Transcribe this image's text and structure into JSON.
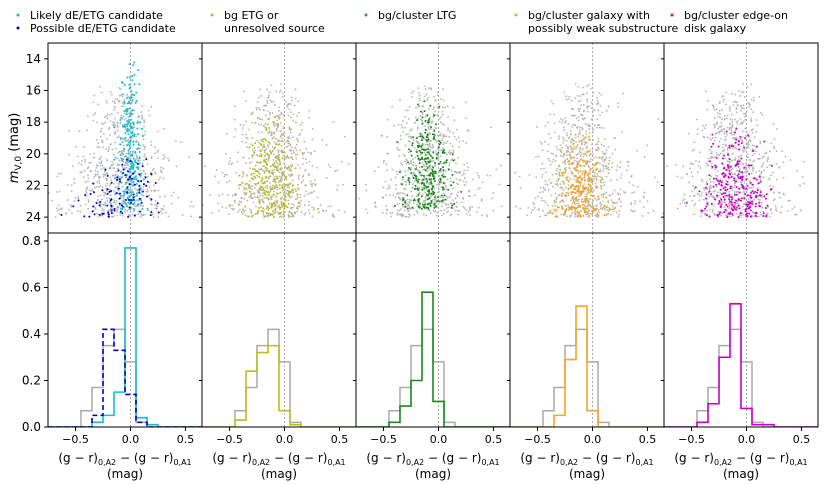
{
  "chart_data": {
    "type": "scatter+histogram",
    "shared": {
      "top_ylabel": "m",
      "top_ylabel_sub": "V,0",
      "top_ylabel_unit": " (mag)",
      "top_yticks": [
        "14",
        "16",
        "18",
        "20",
        "22",
        "24"
      ],
      "top_ylim": [
        13.0,
        25.0
      ],
      "bottom_yticks": [
        "0.0",
        "0.2",
        "0.4",
        "0.6",
        "0.8"
      ],
      "bottom_ylim": [
        0,
        0.8
      ],
      "xticks": [
        "−0.5",
        "0.0",
        "0.5"
      ],
      "xlim": [
        -0.75,
        0.65
      ],
      "xlabel_line1": "(g − r)",
      "xlabel_sub1": "0,A2",
      "xlabel_mid": " − (g − r)",
      "xlabel_sub2": "0,A1",
      "xlabel_line2": "(mag)",
      "gray_hist": {
        "bin_edges": [
          -0.45,
          -0.35,
          -0.25,
          -0.15,
          -0.05,
          0.05,
          0.15
        ],
        "values": [
          0.07,
          0.17,
          0.35,
          0.42,
          0.28,
          0.02
        ]
      }
    },
    "panels": [
      {
        "legend": [
          {
            "label": "Likely dE/ETG candidate",
            "color": "#17becf"
          },
          {
            "label": "Possible dE/ETG candidate",
            "color": "#0000cc"
          }
        ],
        "scatter_series": [
          {
            "name": "Likely dE/ETG candidate",
            "color": "#17becf",
            "x_center": 0.0,
            "x_spread": 0.05,
            "mag_range": [
              14.0,
              23.5
            ]
          },
          {
            "name": "Possible dE/ETG candidate",
            "color": "#0000cc",
            "x_center": -0.05,
            "x_spread": 0.18,
            "mag_range": [
              20.0,
              24.0
            ]
          }
        ],
        "hist_series": [
          {
            "name": "Likely dE/ETG candidate",
            "color": "#17becf",
            "dashed": false,
            "bin_edges": [
              -0.45,
              -0.35,
              -0.25,
              -0.15,
              -0.05,
              0.05,
              0.15,
              0.25
            ],
            "values": [
              0.0,
              0.02,
              0.05,
              0.15,
              0.77,
              0.04,
              0.01
            ]
          },
          {
            "name": "Possible dE/ETG candidate",
            "color": "#0000cc",
            "dashed": true,
            "bin_edges": [
              -0.45,
              -0.35,
              -0.25,
              -0.15,
              -0.05,
              0.05,
              0.15,
              0.25
            ],
            "values": [
              0.0,
              0.05,
              0.42,
              0.33,
              0.14,
              0.02,
              0.0
            ]
          }
        ]
      },
      {
        "legend": [
          {
            "label": "bg ETG or",
            "label2": "unresolved source",
            "color": "#bcbd22"
          }
        ],
        "scatter_series": [
          {
            "name": "bg ETG or unresolved source",
            "color": "#bcbd22",
            "x_center": -0.12,
            "x_spread": 0.12,
            "mag_range": [
              16.5,
              24.0
            ]
          }
        ],
        "hist_series": [
          {
            "name": "bg ETG or unresolved source",
            "color": "#bcbd22",
            "dashed": false,
            "bin_edges": [
              -0.45,
              -0.35,
              -0.25,
              -0.15,
              -0.05,
              0.05,
              0.15
            ],
            "values": [
              0.03,
              0.24,
              0.32,
              0.35,
              0.07,
              0.01
            ]
          }
        ]
      },
      {
        "legend": [
          {
            "label": "bg/cluster LTG",
            "color": "#2ca02c"
          }
        ],
        "scatter_series": [
          {
            "name": "bg/cluster LTG",
            "color": "#1a8a1a",
            "x_center": -0.1,
            "x_spread": 0.1,
            "mag_range": [
              16.5,
              23.5
            ]
          }
        ],
        "hist_series": [
          {
            "name": "bg/cluster LTG",
            "color": "#1a8a1a",
            "dashed": false,
            "bin_edges": [
              -0.45,
              -0.35,
              -0.25,
              -0.15,
              -0.05,
              0.05,
              0.15
            ],
            "values": [
              0.02,
              0.09,
              0.2,
              0.58,
              0.11,
              0.0
            ]
          }
        ]
      },
      {
        "legend": [
          {
            "label": "bg/cluster galaxy with",
            "label2": "possibly weak substructure",
            "color": "#ffa02e"
          }
        ],
        "scatter_series": [
          {
            "name": "bg/cluster galaxy with possibly weak substructure",
            "color": "#f5a623",
            "x_center": -0.1,
            "x_spread": 0.1,
            "mag_range": [
              18.5,
              24.0
            ]
          }
        ],
        "hist_series": [
          {
            "name": "bg/cluster galaxy with possibly weak substructure",
            "color": "#f5a623",
            "dashed": false,
            "bin_edges": [
              -0.45,
              -0.35,
              -0.25,
              -0.15,
              -0.05,
              0.05,
              0.15
            ],
            "values": [
              0.0,
              0.05,
              0.29,
              0.52,
              0.07,
              0.0
            ]
          }
        ]
      },
      {
        "legend": [
          {
            "label": "bg/cluster edge-on",
            "label2": "disk galaxy",
            "color": "#cc00cc"
          }
        ],
        "scatter_series": [
          {
            "name": "bg/cluster edge-on disk galaxy",
            "color": "#cc00cc",
            "x_center": -0.1,
            "x_spread": 0.14,
            "mag_range": [
              18.0,
              24.0
            ]
          }
        ],
        "hist_series": [
          {
            "name": "bg/cluster edge-on disk galaxy",
            "color": "#cc00cc",
            "dashed": false,
            "bin_edges": [
              -0.45,
              -0.35,
              -0.25,
              -0.15,
              -0.05,
              0.05,
              0.15,
              0.25
            ],
            "values": [
              0.02,
              0.1,
              0.3,
              0.53,
              0.08,
              0.01,
              0.01
            ]
          }
        ]
      }
    ]
  }
}
